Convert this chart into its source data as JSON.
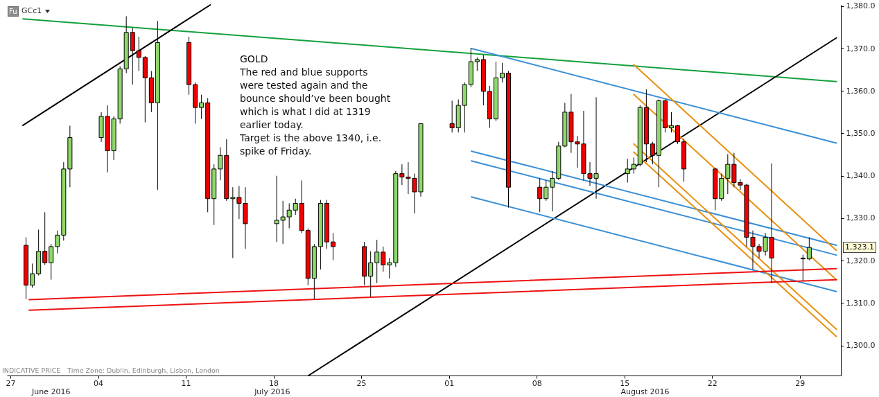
{
  "chart_data": {
    "type": "candlestick",
    "title": "GCc1",
    "x": [
      "2016-06-28T06:00",
      "2016-06-28T18:00",
      "2016-06-29T06:00",
      "2016-06-29T18:00",
      "2016-06-30T06:00",
      "2016-06-30T18:00",
      "2016-07-01T06:00",
      "2016-07-01T18:00",
      "2016-07-04T06:00",
      "2016-07-04T18:00",
      "2016-07-05T06:00",
      "2016-07-05T18:00",
      "2016-07-06T06:00",
      "2016-07-06T18:00",
      "2016-07-07T06:00",
      "2016-07-07T18:00",
      "2016-07-08T06:00",
      "2016-07-08T18:00",
      "2016-07-11T06:00",
      "2016-07-11T18:00",
      "2016-07-12T06:00",
      "2016-07-12T18:00",
      "2016-07-13T06:00",
      "2016-07-13T18:00",
      "2016-07-14T06:00",
      "2016-07-14T18:00",
      "2016-07-15T06:00",
      "2016-07-15T18:00",
      "2016-07-18T06:00",
      "2016-07-18T18:00",
      "2016-07-19T06:00",
      "2016-07-19T18:00",
      "2016-07-20T06:00",
      "2016-07-20T18:00",
      "2016-07-21T06:00",
      "2016-07-21T18:00",
      "2016-07-22T06:00",
      "2016-07-22T18:00",
      "2016-07-25T06:00",
      "2016-07-25T18:00",
      "2016-07-26T06:00",
      "2016-07-26T18:00",
      "2016-07-27T06:00",
      "2016-07-27T18:00",
      "2016-07-28T06:00",
      "2016-07-28T18:00",
      "2016-07-29T06:00",
      "2016-07-29T18:00",
      "2016-08-01T06:00",
      "2016-08-01T18:00",
      "2016-08-02T06:00",
      "2016-08-02T18:00",
      "2016-08-03T06:00",
      "2016-08-03T18:00",
      "2016-08-04T06:00",
      "2016-08-04T18:00",
      "2016-08-05T06:00",
      "2016-08-05T18:00",
      "2016-08-08T06:00",
      "2016-08-08T18:00",
      "2016-08-09T06:00",
      "2016-08-09T18:00",
      "2016-08-10T06:00",
      "2016-08-10T18:00",
      "2016-08-11T06:00",
      "2016-08-11T18:00",
      "2016-08-12T06:00",
      "2016-08-12T18:00",
      "2016-08-15T06:00",
      "2016-08-15T18:00",
      "2016-08-16T06:00",
      "2016-08-16T18:00",
      "2016-08-17T06:00",
      "2016-08-17T18:00",
      "2016-08-18T06:00",
      "2016-08-18T18:00",
      "2016-08-19T06:00",
      "2016-08-19T18:00",
      "2016-08-22T06:00",
      "2016-08-22T18:00",
      "2016-08-23T06:00",
      "2016-08-23T18:00",
      "2016-08-24T06:00",
      "2016-08-24T18:00",
      "2016-08-25T06:00",
      "2016-08-25T18:00",
      "2016-08-26T06:00",
      "2016-08-26T18:00",
      "2016-08-29T06:00",
      "2016-08-29T18:00"
    ],
    "ohlc": [
      [
        1323.6,
        1325.5,
        1310.9,
        1314.2
      ],
      [
        1314.2,
        1319.3,
        1313.6,
        1316.9
      ],
      [
        1316.9,
        1327.3,
        1316.5,
        1322.2
      ],
      [
        1322.2,
        1331.4,
        1319.0,
        1319.5
      ],
      [
        1319.5,
        1323.9,
        1315.5,
        1323.3
      ],
      [
        1323.3,
        1327.1,
        1321.7,
        1326.0
      ],
      [
        1326.0,
        1343.2,
        1324.7,
        1341.6
      ],
      [
        1341.6,
        1351.8,
        1337.3,
        1349.0
      ],
      [
        1349.0,
        1355.0,
        1348.0,
        1354.0
      ],
      [
        1354.0,
        1356.6,
        1340.8,
        1345.9
      ],
      [
        1345.9,
        1354.0,
        1343.7,
        1353.4
      ],
      [
        1353.4,
        1365.8,
        1352.3,
        1365.2
      ],
      [
        1365.2,
        1377.6,
        1364.2,
        1373.8
      ],
      [
        1373.8,
        1374.9,
        1361.5,
        1369.5
      ],
      [
        1369.5,
        1372.8,
        1364.7,
        1367.9
      ],
      [
        1367.9,
        1368.2,
        1352.6,
        1363.1
      ],
      [
        1363.1,
        1364.7,
        1355.0,
        1357.2
      ],
      [
        1357.2,
        1376.5,
        1336.7,
        1371.4
      ],
      [
        1371.4,
        1372.8,
        1359.1,
        1361.5
      ],
      [
        1361.5,
        1362.0,
        1352.3,
        1356.1
      ],
      [
        1356.1,
        1359.1,
        1353.4,
        1357.2
      ],
      [
        1357.2,
        1358.3,
        1331.4,
        1334.6
      ],
      [
        1334.6,
        1342.7,
        1328.4,
        1341.6
      ],
      [
        1341.6,
        1346.7,
        1338.9,
        1344.8
      ],
      [
        1344.8,
        1348.6,
        1334.1,
        1334.6
      ],
      [
        1334.6,
        1337.3,
        1320.6,
        1334.9
      ],
      [
        1334.9,
        1337.6,
        1329.8,
        1333.5
      ],
      [
        1333.5,
        1337.3,
        1322.8,
        1328.7
      ],
      [
        1328.7,
        1340.0,
        1324.4,
        1329.5
      ],
      [
        1329.5,
        1334.1,
        1323.9,
        1330.3
      ],
      [
        1330.3,
        1333.5,
        1327.6,
        1331.9
      ],
      [
        1331.9,
        1334.6,
        1330.8,
        1333.5
      ],
      [
        1333.5,
        1338.9,
        1326.5,
        1327.1
      ],
      [
        1327.1,
        1327.6,
        1314.2,
        1315.8
      ],
      [
        1315.8,
        1323.9,
        1310.9,
        1323.3
      ],
      [
        1323.3,
        1334.3,
        1317.9,
        1333.5
      ],
      [
        1333.5,
        1334.3,
        1322.8,
        1324.4
      ],
      [
        1324.4,
        1326.5,
        1320.1,
        1323.3
      ],
      [
        1323.3,
        1324.4,
        1314.2,
        1316.3
      ],
      [
        1316.3,
        1322.2,
        1311.5,
        1319.5
      ],
      [
        1319.5,
        1324.9,
        1314.7,
        1322.0
      ],
      [
        1322.0,
        1323.3,
        1317.4,
        1319.0
      ],
      [
        1319.0,
        1320.6,
        1315.8,
        1319.5
      ],
      [
        1319.5,
        1341.1,
        1318.5,
        1340.5
      ],
      [
        1340.5,
        1342.7,
        1337.8,
        1339.7
      ],
      [
        1339.7,
        1343.2,
        1335.7,
        1339.4
      ],
      [
        1339.4,
        1340.5,
        1331.1,
        1336.2
      ],
      [
        1336.2,
        1352.3,
        1335.1,
        1352.3
      ],
      [
        1352.3,
        1357.7,
        1350.2,
        1351.3
      ],
      [
        1351.3,
        1358.0,
        1350.2,
        1356.6
      ],
      [
        1356.6,
        1362.0,
        1350.2,
        1361.5
      ],
      [
        1361.5,
        1370.1,
        1360.9,
        1366.9
      ],
      [
        1366.9,
        1367.9,
        1364.7,
        1367.4
      ],
      [
        1367.4,
        1368.5,
        1356.6,
        1359.9
      ],
      [
        1359.9,
        1361.2,
        1351.3,
        1353.4
      ],
      [
        1353.4,
        1366.9,
        1352.9,
        1363.1
      ],
      [
        1363.1,
        1366.6,
        1362.0,
        1364.2
      ],
      [
        1364.2,
        1364.7,
        1332.5,
        1337.3
      ],
      [
        1337.3,
        1339.4,
        1331.4,
        1334.6
      ],
      [
        1334.6,
        1338.9,
        1334.1,
        1337.3
      ],
      [
        1337.3,
        1341.1,
        1331.6,
        1339.4
      ],
      [
        1339.4,
        1348.0,
        1339.0,
        1347.0
      ],
      [
        1347.0,
        1357.2,
        1346.7,
        1355.0
      ],
      [
        1355.0,
        1359.3,
        1345.4,
        1348.0
      ],
      [
        1348.0,
        1349.4,
        1341.9,
        1347.5
      ],
      [
        1347.5,
        1355.3,
        1338.9,
        1340.5
      ],
      [
        1340.5,
        1343.2,
        1337.6,
        1339.4
      ],
      [
        1339.4,
        1358.5,
        1334.6,
        1340.5
      ],
      [
        1340.5,
        1344.0,
        1338.4,
        1341.6
      ],
      [
        1341.6,
        1344.3,
        1340.5,
        1342.7
      ],
      [
        1342.7,
        1356.6,
        1342.2,
        1356.1
      ],
      [
        1356.1,
        1360.4,
        1343.2,
        1347.5
      ],
      [
        1347.5,
        1348.0,
        1342.7,
        1344.8
      ],
      [
        1344.8,
        1358.0,
        1337.3,
        1357.7
      ],
      [
        1357.7,
        1358.0,
        1350.2,
        1351.3
      ],
      [
        1351.3,
        1355.0,
        1350.2,
        1351.8
      ],
      [
        1351.8,
        1352.0,
        1347.5,
        1348.0
      ],
      [
        1348.0,
        1348.6,
        1338.6,
        1341.6
      ],
      [
        1341.6,
        1341.9,
        1331.9,
        1334.6
      ],
      [
        1334.6,
        1340.5,
        1334.1,
        1339.4
      ],
      [
        1339.4,
        1345.1,
        1335.7,
        1342.7
      ],
      [
        1342.7,
        1345.4,
        1337.3,
        1338.4
      ],
      [
        1338.4,
        1339.2,
        1336.7,
        1337.8
      ],
      [
        1337.8,
        1338.1,
        1323.3,
        1325.5
      ],
      [
        1325.5,
        1327.1,
        1317.9,
        1323.3
      ],
      [
        1323.3,
        1323.9,
        1320.6,
        1322.2
      ],
      [
        1322.2,
        1326.5,
        1321.2,
        1325.5
      ],
      [
        1325.5,
        1342.9,
        1314.7,
        1320.6
      ],
      [
        1320.6,
        1321.4,
        1315.2,
        1320.4
      ],
      [
        1320.4,
        1325.5,
        1320.1,
        1323.1
      ]
    ],
    "colors": [
      "#f00000",
      "#8fd86a",
      "#8fd86a",
      "#f00000",
      "#8fd86a",
      "#8fd86a",
      "#8fd86a",
      "#8fd86a",
      "#8fd86a",
      "#f00000",
      "#8fd86a",
      "#8fd86a",
      "#8fd86a",
      "#f00000",
      "#f00000",
      "#f00000",
      "#f00000",
      "#8fd86a",
      "#f00000",
      "#f00000",
      "#8fd86a",
      "#f00000",
      "#8fd86a",
      "#8fd86a",
      "#f00000",
      "#8fd86a",
      "#f00000",
      "#f00000",
      "#8fd86a",
      "#8fd86a",
      "#8fd86a",
      "#8fd86a",
      "#f00000",
      "#f00000",
      "#8fd86a",
      "#8fd86a",
      "#f00000",
      "#f00000",
      "#f00000",
      "#8fd86a",
      "#8fd86a",
      "#f00000",
      "#8fd86a",
      "#8fd86a",
      "#f00000",
      "#f00000",
      "#f00000",
      "#8fd86a",
      "#f00000",
      "#8fd86a",
      "#8fd86a",
      "#8fd86a",
      "#8fd86a",
      "#f00000",
      "#f00000",
      "#8fd86a",
      "#8fd86a",
      "#f00000",
      "#f00000",
      "#8fd86a",
      "#8fd86a",
      "#8fd86a",
      "#8fd86a",
      "#f00000",
      "#f00000",
      "#f00000",
      "#f00000",
      "#8fd86a",
      "#8fd86a",
      "#8fd86a",
      "#8fd86a",
      "#f00000",
      "#f00000",
      "#8fd86a",
      "#f00000",
      "#8fd86a",
      "#f00000",
      "#f00000",
      "#f00000",
      "#8fd86a",
      "#8fd86a",
      "#f00000",
      "#f00000",
      "#f00000",
      "#f00000",
      "#f00000",
      "#8fd86a",
      "#f00000",
      "#f00000",
      "#8fd86a"
    ],
    "series": [
      {
        "type": "line",
        "color": "#13a03c",
        "x": [
          "2016-06-28T00:00",
          "2016-08-31T22:00"
        ],
        "values": [
          1377.0,
          1362.2
        ]
      },
      {
        "type": "line",
        "color": "#000000",
        "x": [
          "2016-06-28T00:00",
          "2016-07-12T23:00"
        ],
        "values": [
          1351.9,
          1380.3
        ]
      },
      {
        "type": "line",
        "color": "#000000",
        "x": [
          "2016-07-20T19:00",
          "2016-08-31T22:00"
        ],
        "values": [
          1292.9,
          1372.5
        ]
      },
      {
        "type": "line",
        "color": "#3a8fd6",
        "x": [
          "2016-08-02T19:00",
          "2016-08-31T22:00"
        ],
        "values": [
          1370.0,
          1347.7
        ]
      },
      {
        "type": "line",
        "color": "#3a8fd6",
        "x": [
          "2016-08-02T19:00",
          "2016-08-31T22:00"
        ],
        "values": [
          1345.8,
          1323.6
        ]
      },
      {
        "type": "line",
        "color": "#3a8fd6",
        "x": [
          "2016-08-02T19:00",
          "2016-08-31T22:00"
        ],
        "values": [
          1343.5,
          1321.3
        ]
      },
      {
        "type": "line",
        "color": "#3a8fd6",
        "x": [
          "2016-08-02T19:00",
          "2016-08-31T22:00"
        ],
        "values": [
          1335.0,
          1312.7
        ]
      },
      {
        "type": "line",
        "color": "#e8900c",
        "x": [
          "2016-08-15T18:00",
          "2016-08-31T22:00"
        ],
        "values": [
          1366.2,
          1322.4
        ]
      },
      {
        "type": "line",
        "color": "#e8900c",
        "x": [
          "2016-08-15T18:00",
          "2016-08-31T22:00"
        ],
        "values": [
          1359.2,
          1315.5
        ]
      },
      {
        "type": "line",
        "color": "#e8900c",
        "x": [
          "2016-08-15T18:00",
          "2016-08-31T22:00"
        ],
        "values": [
          1347.5,
          1303.8
        ]
      },
      {
        "type": "line",
        "color": "#e8900c",
        "x": [
          "2016-08-15T18:00",
          "2016-08-31T22:00"
        ],
        "values": [
          1345.6,
          1302.1
        ]
      },
      {
        "type": "line",
        "color": "#ee1111",
        "x": [
          "2016-06-28T12:00",
          "2016-08-31T22:00"
        ],
        "values": [
          1310.8,
          1318.1
        ]
      },
      {
        "type": "line",
        "color": "#ee1111",
        "x": [
          "2016-06-28T12:00",
          "2016-08-31T22:00"
        ],
        "values": [
          1308.3,
          1315.5
        ]
      }
    ],
    "xlim": [
      "2016-06-27",
      "2016-09-01"
    ],
    "xticks": [
      {
        "value": "2016-06-27",
        "label": "27"
      },
      {
        "value": "2016-07-04",
        "label": "04"
      },
      {
        "value": "2016-07-11",
        "label": "11"
      },
      {
        "value": "2016-07-18",
        "label": "18"
      },
      {
        "value": "2016-07-25",
        "label": "25"
      },
      {
        "value": "2016-08-01",
        "label": "01"
      },
      {
        "value": "2016-08-08",
        "label": "08"
      },
      {
        "value": "2016-08-15",
        "label": "15"
      },
      {
        "value": "2016-08-22",
        "label": "22"
      },
      {
        "value": "2016-08-29",
        "label": "29"
      }
    ],
    "ylim": [
      1292.9,
      1380.3
    ],
    "yticks": [
      {
        "value": 1300,
        "label": "1,300.0"
      },
      {
        "value": 1310,
        "label": "1,310.0"
      },
      {
        "value": 1320,
        "label": "1,320.0"
      },
      {
        "value": 1330,
        "label": "1,330.0"
      },
      {
        "value": 1340,
        "label": "1,340.0"
      },
      {
        "value": 1350,
        "label": "1,350.0"
      },
      {
        "value": 1360,
        "label": "1,360.0"
      },
      {
        "value": 1370,
        "label": "1,370.0"
      },
      {
        "value": 1380,
        "label": "1,380.0"
      }
    ],
    "annotations": [
      "GOLD\nThe red and blue supports\nwere tested again and the\nbounce should’ve been bought\nwhich is what I did at 1319\nearlier today.\nTarget is the above 1340, i.e.\nspike of Friday.",
      "Fu",
      "INDICATIVE PRICE",
      "Time Zone: Dublin, Edinburgh, Lisbon, London",
      "June 2016",
      "July 2016",
      "August 2016",
      "1,323.1"
    ]
  }
}
